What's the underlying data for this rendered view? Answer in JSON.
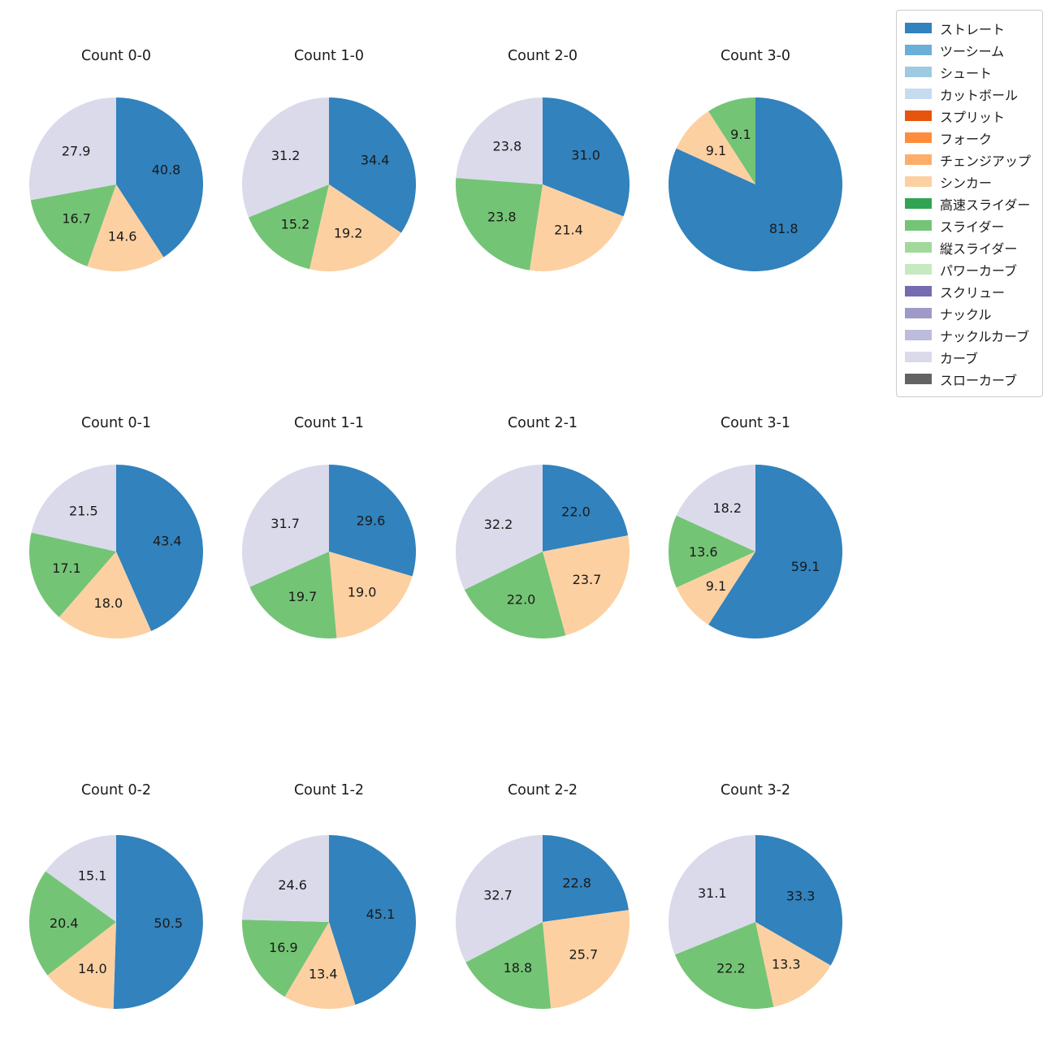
{
  "figure": {
    "background": "#ffffff",
    "text_color": "#1a1a1a"
  },
  "legend": {
    "position": "top-right",
    "items": [
      {
        "label": "ストレート",
        "color": "#3182bd"
      },
      {
        "label": "ツーシーム",
        "color": "#6baed6"
      },
      {
        "label": "シュート",
        "color": "#9ecae1"
      },
      {
        "label": "カットボール",
        "color": "#c6dbef"
      },
      {
        "label": "スプリット",
        "color": "#e6550d"
      },
      {
        "label": "フォーク",
        "color": "#fd8d3c"
      },
      {
        "label": "チェンジアップ",
        "color": "#fdae6b"
      },
      {
        "label": "シンカー",
        "color": "#fdd0a2"
      },
      {
        "label": "高速スライダー",
        "color": "#31a354"
      },
      {
        "label": "スライダー",
        "color": "#74c476"
      },
      {
        "label": "縦スライダー",
        "color": "#a1d99b"
      },
      {
        "label": "パワーカーブ",
        "color": "#c7e9c0"
      },
      {
        "label": "スクリュー",
        "color": "#756bb1"
      },
      {
        "label": "ナックル",
        "color": "#9e9ac8"
      },
      {
        "label": "ナックルカーブ",
        "color": "#bcbddc"
      },
      {
        "label": "カーブ",
        "color": "#dadaeb"
      },
      {
        "label": "スローカーブ",
        "color": "#636363"
      }
    ]
  },
  "chart_data": [
    {
      "type": "pie",
      "title": "Count 0-0",
      "start_angle": 90,
      "direction": "clockwise",
      "slices": [
        {
          "label": "ストレート",
          "value": 40.8,
          "pct_label": "40.8",
          "color": "#3182bd"
        },
        {
          "label": "シンカー",
          "value": 14.6,
          "pct_label": "14.6",
          "color": "#fdd0a2"
        },
        {
          "label": "スライダー",
          "value": 16.7,
          "pct_label": "16.7",
          "color": "#74c476"
        },
        {
          "label": "カーブ",
          "value": 27.9,
          "pct_label": "27.9",
          "color": "#dadaeb"
        }
      ]
    },
    {
      "type": "pie",
      "title": "Count 1-0",
      "start_angle": 90,
      "direction": "clockwise",
      "slices": [
        {
          "label": "ストレート",
          "value": 34.4,
          "pct_label": "34.4",
          "color": "#3182bd"
        },
        {
          "label": "シンカー",
          "value": 19.2,
          "pct_label": "19.2",
          "color": "#fdd0a2"
        },
        {
          "label": "スライダー",
          "value": 15.2,
          "pct_label": "15.2",
          "color": "#74c476"
        },
        {
          "label": "カーブ",
          "value": 31.2,
          "pct_label": "31.2",
          "color": "#dadaeb"
        }
      ]
    },
    {
      "type": "pie",
      "title": "Count 2-0",
      "start_angle": 90,
      "direction": "clockwise",
      "slices": [
        {
          "label": "ストレート",
          "value": 31.0,
          "pct_label": "31.0",
          "color": "#3182bd"
        },
        {
          "label": "シンカー",
          "value": 21.4,
          "pct_label": "21.4",
          "color": "#fdd0a2"
        },
        {
          "label": "スライダー",
          "value": 23.8,
          "pct_label": "23.8",
          "color": "#74c476"
        },
        {
          "label": "カーブ",
          "value": 23.8,
          "pct_label": "23.8",
          "color": "#dadaeb"
        }
      ]
    },
    {
      "type": "pie",
      "title": "Count 3-0",
      "start_angle": 90,
      "direction": "clockwise",
      "slices": [
        {
          "label": "ストレート",
          "value": 81.8,
          "pct_label": "81.8",
          "color": "#3182bd"
        },
        {
          "label": "シンカー",
          "value": 9.1,
          "pct_label": "9.1",
          "color": "#fdd0a2"
        },
        {
          "label": "スライダー",
          "value": 9.1,
          "pct_label": "9.1",
          "color": "#74c476"
        }
      ]
    },
    {
      "type": "pie",
      "title": "Count 0-1",
      "start_angle": 90,
      "direction": "clockwise",
      "slices": [
        {
          "label": "ストレート",
          "value": 43.4,
          "pct_label": "43.4",
          "color": "#3182bd"
        },
        {
          "label": "シンカー",
          "value": 18.0,
          "pct_label": "18.0",
          "color": "#fdd0a2"
        },
        {
          "label": "スライダー",
          "value": 17.1,
          "pct_label": "17.1",
          "color": "#74c476"
        },
        {
          "label": "カーブ",
          "value": 21.5,
          "pct_label": "21.5",
          "color": "#dadaeb"
        }
      ]
    },
    {
      "type": "pie",
      "title": "Count 1-1",
      "start_angle": 90,
      "direction": "clockwise",
      "slices": [
        {
          "label": "ストレート",
          "value": 29.6,
          "pct_label": "29.6",
          "color": "#3182bd"
        },
        {
          "label": "シンカー",
          "value": 19.0,
          "pct_label": "19.0",
          "color": "#fdd0a2"
        },
        {
          "label": "スライダー",
          "value": 19.7,
          "pct_label": "19.7",
          "color": "#74c476"
        },
        {
          "label": "カーブ",
          "value": 31.7,
          "pct_label": "31.7",
          "color": "#dadaeb"
        }
      ]
    },
    {
      "type": "pie",
      "title": "Count 2-1",
      "start_angle": 90,
      "direction": "clockwise",
      "slices": [
        {
          "label": "ストレート",
          "value": 22.0,
          "pct_label": "22.0",
          "color": "#3182bd"
        },
        {
          "label": "シンカー",
          "value": 23.7,
          "pct_label": "23.7",
          "color": "#fdd0a2"
        },
        {
          "label": "スライダー",
          "value": 22.0,
          "pct_label": "22.0",
          "color": "#74c476"
        },
        {
          "label": "カーブ",
          "value": 32.2,
          "pct_label": "32.2",
          "color": "#dadaeb"
        }
      ]
    },
    {
      "type": "pie",
      "title": "Count 3-1",
      "start_angle": 90,
      "direction": "clockwise",
      "slices": [
        {
          "label": "ストレート",
          "value": 59.1,
          "pct_label": "59.1",
          "color": "#3182bd"
        },
        {
          "label": "シンカー",
          "value": 9.1,
          "pct_label": "9.1",
          "color": "#fdd0a2"
        },
        {
          "label": "スライダー",
          "value": 13.6,
          "pct_label": "13.6",
          "color": "#74c476"
        },
        {
          "label": "カーブ",
          "value": 18.2,
          "pct_label": "18.2",
          "color": "#dadaeb"
        }
      ]
    },
    {
      "type": "pie",
      "title": "Count 0-2",
      "start_angle": 90,
      "direction": "clockwise",
      "slices": [
        {
          "label": "ストレート",
          "value": 50.5,
          "pct_label": "50.5",
          "color": "#3182bd"
        },
        {
          "label": "シンカー",
          "value": 14.0,
          "pct_label": "14.0",
          "color": "#fdd0a2"
        },
        {
          "label": "スライダー",
          "value": 20.4,
          "pct_label": "20.4",
          "color": "#74c476"
        },
        {
          "label": "カーブ",
          "value": 15.1,
          "pct_label": "15.1",
          "color": "#dadaeb"
        }
      ]
    },
    {
      "type": "pie",
      "title": "Count 1-2",
      "start_angle": 90,
      "direction": "clockwise",
      "slices": [
        {
          "label": "ストレート",
          "value": 45.1,
          "pct_label": "45.1",
          "color": "#3182bd"
        },
        {
          "label": "シンカー",
          "value": 13.4,
          "pct_label": "13.4",
          "color": "#fdd0a2"
        },
        {
          "label": "スライダー",
          "value": 16.9,
          "pct_label": "16.9",
          "color": "#74c476"
        },
        {
          "label": "カーブ",
          "value": 24.6,
          "pct_label": "24.6",
          "color": "#dadaeb"
        }
      ]
    },
    {
      "type": "pie",
      "title": "Count 2-2",
      "start_angle": 90,
      "direction": "clockwise",
      "slices": [
        {
          "label": "ストレート",
          "value": 22.8,
          "pct_label": "22.8",
          "color": "#3182bd"
        },
        {
          "label": "シンカー",
          "value": 25.7,
          "pct_label": "25.7",
          "color": "#fdd0a2"
        },
        {
          "label": "スライダー",
          "value": 18.8,
          "pct_label": "18.8",
          "color": "#74c476"
        },
        {
          "label": "カーブ",
          "value": 32.7,
          "pct_label": "32.7",
          "color": "#dadaeb"
        }
      ]
    },
    {
      "type": "pie",
      "title": "Count 3-2",
      "start_angle": 90,
      "direction": "clockwise",
      "slices": [
        {
          "label": "ストレート",
          "value": 33.3,
          "pct_label": "33.3",
          "color": "#3182bd"
        },
        {
          "label": "シンカー",
          "value": 13.3,
          "pct_label": "13.3",
          "color": "#fdd0a2"
        },
        {
          "label": "スライダー",
          "value": 22.2,
          "pct_label": "22.2",
          "color": "#74c476"
        },
        {
          "label": "カーブ",
          "value": 31.1,
          "pct_label": "31.1",
          "color": "#dadaeb"
        }
      ]
    }
  ]
}
